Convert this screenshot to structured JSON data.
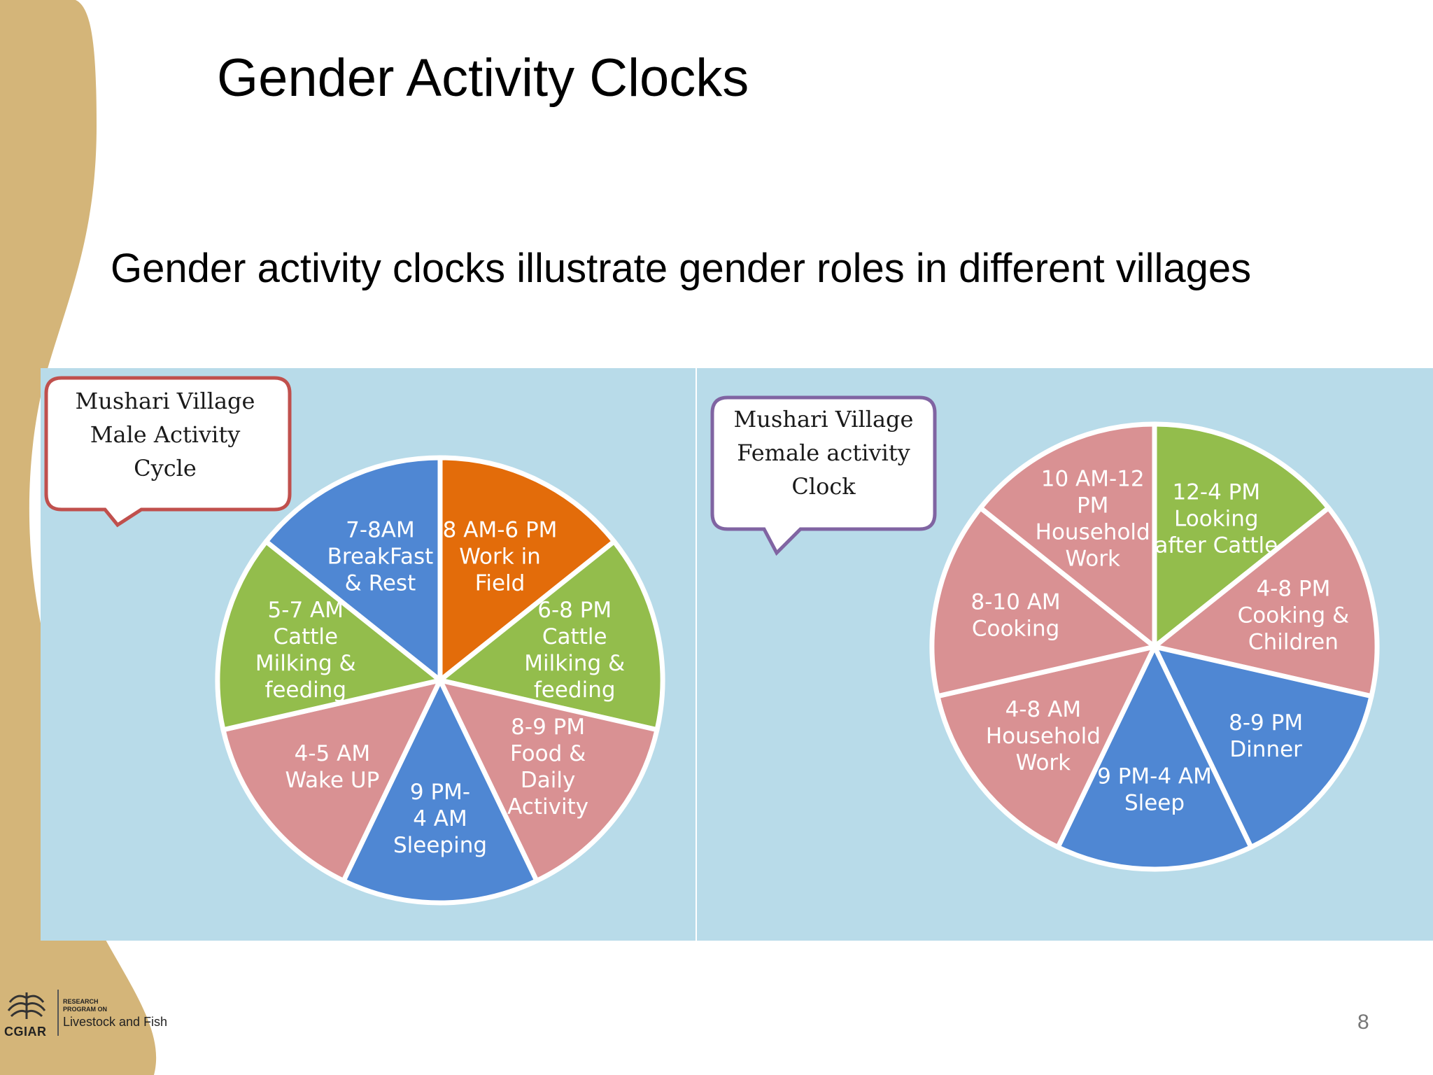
{
  "slide": {
    "title": "Gender Activity Clocks",
    "subtitle": "Gender activity clocks illustrate gender roles in different villages",
    "page_number": "8",
    "logo": {
      "org": "CGIAR",
      "small_text": "RESEARCH PROGRAM ON",
      "program": "Livestock and Fish"
    }
  },
  "colors": {
    "pink": "#d99193",
    "green": "#93bd4c",
    "blue": "#4f87d3",
    "orange": "#e36c0a",
    "panel_bg": "#b8dbe9",
    "decor_tan": "#d4b579"
  },
  "chart_data": [
    {
      "type": "pie",
      "title": "Mushari Village Male Activity Cycle",
      "callout_lines": [
        "Mushari Village",
        "Male Activity",
        "Cycle"
      ],
      "slices": [
        {
          "label": "8 AM-6 PM Work in Field",
          "lines": [
            "8 AM-6 PM",
            "Work in",
            "Field"
          ],
          "value": 1,
          "color": "#e36c0a"
        },
        {
          "label": "6-8 PM Cattle Milking & feeding",
          "lines": [
            "6-8 PM",
            "Cattle",
            "Milking &",
            "feeding"
          ],
          "value": 1,
          "color": "#93bd4c"
        },
        {
          "label": "8-9 PM Food & Daily Activity",
          "lines": [
            "8-9 PM",
            "Food &",
            "Daily",
            "Activity"
          ],
          "value": 1,
          "color": "#d99193"
        },
        {
          "label": "9 PM-4 AM Sleeping",
          "lines": [
            "9 PM-",
            "4 AM",
            "Sleeping"
          ],
          "value": 1,
          "color": "#4f87d3"
        },
        {
          "label": "4-5 AM Wake UP",
          "lines": [
            "4-5 AM",
            "Wake UP"
          ],
          "value": 1,
          "color": "#d99193"
        },
        {
          "label": "5-7 AM Cattle Milking & feeding",
          "lines": [
            "5-7 AM",
            "Cattle",
            "Milking &",
            "feeding"
          ],
          "value": 1,
          "color": "#93bd4c"
        },
        {
          "label": "7-8AM BreakFast & Rest",
          "lines": [
            "7-8AM",
            "BreakFast",
            "& Rest"
          ],
          "value": 1,
          "color": "#4f87d3"
        }
      ]
    },
    {
      "type": "pie",
      "title": "Mushari Village Female activity Clock",
      "callout_lines": [
        "Mushari Village",
        "Female activity",
        "Clock"
      ],
      "slices": [
        {
          "label": "12-4 PM Looking after Cattle",
          "lines": [
            "12-4 PM",
            "Looking",
            "after Cattle"
          ],
          "value": 1,
          "color": "#93bd4c"
        },
        {
          "label": "4-8 PM Cooking & Children",
          "lines": [
            "4-8 PM",
            "Cooking &",
            "Children"
          ],
          "value": 1,
          "color": "#d99193"
        },
        {
          "label": "8-9 PM Dinner",
          "lines": [
            "8-9 PM",
            "Dinner"
          ],
          "value": 1,
          "color": "#4f87d3"
        },
        {
          "label": "9 PM-4 AM Sleep",
          "lines": [
            "9 PM-4 AM",
            "Sleep"
          ],
          "value": 1,
          "color": "#4f87d3"
        },
        {
          "label": "4-8 AM Household Work",
          "lines": [
            "4-8 AM",
            "Household",
            "Work"
          ],
          "value": 1,
          "color": "#d99193"
        },
        {
          "label": "8-10 AM Cooking",
          "lines": [
            "8-10 AM",
            "Cooking"
          ],
          "value": 1,
          "color": "#d99193"
        },
        {
          "label": "10 AM-12 PM Household Work",
          "lines": [
            "10 AM-12",
            "PM",
            "Household",
            "Work"
          ],
          "value": 1,
          "color": "#d99193"
        }
      ]
    }
  ]
}
